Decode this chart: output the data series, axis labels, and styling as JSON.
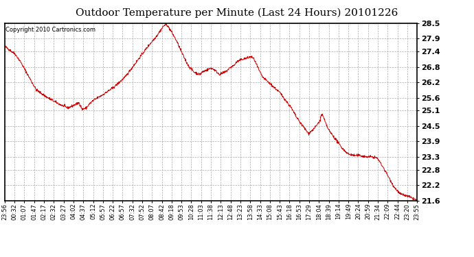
{
  "title": "Outdoor Temperature per Minute (Last 24 Hours) 20101226",
  "copyright_text": "Copyright 2010 Cartronics.com",
  "line_color": "#cc0000",
  "background_color": "#ffffff",
  "plot_bg_color": "#ffffff",
  "grid_color": "#aaaaaa",
  "ylim": [
    21.6,
    28.5
  ],
  "yticks": [
    21.6,
    22.2,
    22.8,
    23.3,
    23.9,
    24.5,
    25.1,
    25.6,
    26.2,
    26.8,
    27.4,
    27.9,
    28.5
  ],
  "x_labels": [
    "23:56",
    "00:32",
    "01:07",
    "01:47",
    "02:17",
    "02:32",
    "03:27",
    "04:02",
    "04:37",
    "05:12",
    "05:57",
    "06:22",
    "06:57",
    "07:32",
    "07:52",
    "08:07",
    "08:42",
    "09:18",
    "09:53",
    "10:28",
    "11:03",
    "11:38",
    "12:13",
    "12:48",
    "13:23",
    "13:58",
    "14:33",
    "15:08",
    "15:43",
    "16:18",
    "16:53",
    "17:29",
    "18:04",
    "18:39",
    "19:14",
    "19:49",
    "20:24",
    "20:59",
    "21:34",
    "22:09",
    "22:44",
    "23:20",
    "23:55"
  ],
  "num_points": 1440,
  "key_points": {
    "0": 27.6,
    "36": 27.3,
    "55": 27.0,
    "80": 26.5,
    "110": 25.9,
    "150": 25.6,
    "190": 25.35,
    "220": 25.2,
    "240": 25.3,
    "260": 25.4,
    "270": 25.15,
    "285": 25.2,
    "295": 25.35,
    "310": 25.5,
    "340": 25.7,
    "380": 26.0,
    "420": 26.4,
    "460": 27.0,
    "500": 27.6,
    "530": 28.0,
    "555": 28.4,
    "565": 28.45,
    "580": 28.2,
    "600": 27.8,
    "620": 27.3,
    "640": 26.85,
    "660": 26.6,
    "670": 26.55,
    "680": 26.5,
    "690": 26.6,
    "700": 26.65,
    "710": 26.7,
    "720": 26.75,
    "730": 26.7,
    "740": 26.6,
    "750": 26.5,
    "760": 26.55,
    "770": 26.6,
    "780": 26.7,
    "790": 26.8,
    "800": 26.85,
    "810": 27.0,
    "830": 27.1,
    "850": 27.15,
    "860": 27.2,
    "870": 27.1,
    "880": 26.85,
    "890": 26.6,
    "900": 26.4,
    "910": 26.3,
    "920": 26.2,
    "940": 26.0,
    "960": 25.8,
    "980": 25.5,
    "1000": 25.2,
    "1020": 24.8,
    "1040": 24.5,
    "1060": 24.2,
    "1080": 24.4,
    "1090": 24.55,
    "1100": 24.7,
    "1105": 24.95,
    "1110": 24.9,
    "1120": 24.6,
    "1130": 24.35,
    "1140": 24.2,
    "1160": 23.9,
    "1180": 23.6,
    "1200": 23.4,
    "1220": 23.35,
    "1240": 23.35,
    "1260": 23.3,
    "1280": 23.3,
    "1300": 23.25,
    "1320": 22.9,
    "1340": 22.5,
    "1360": 22.1,
    "1380": 21.85,
    "1410": 21.75,
    "1439": 21.6
  }
}
